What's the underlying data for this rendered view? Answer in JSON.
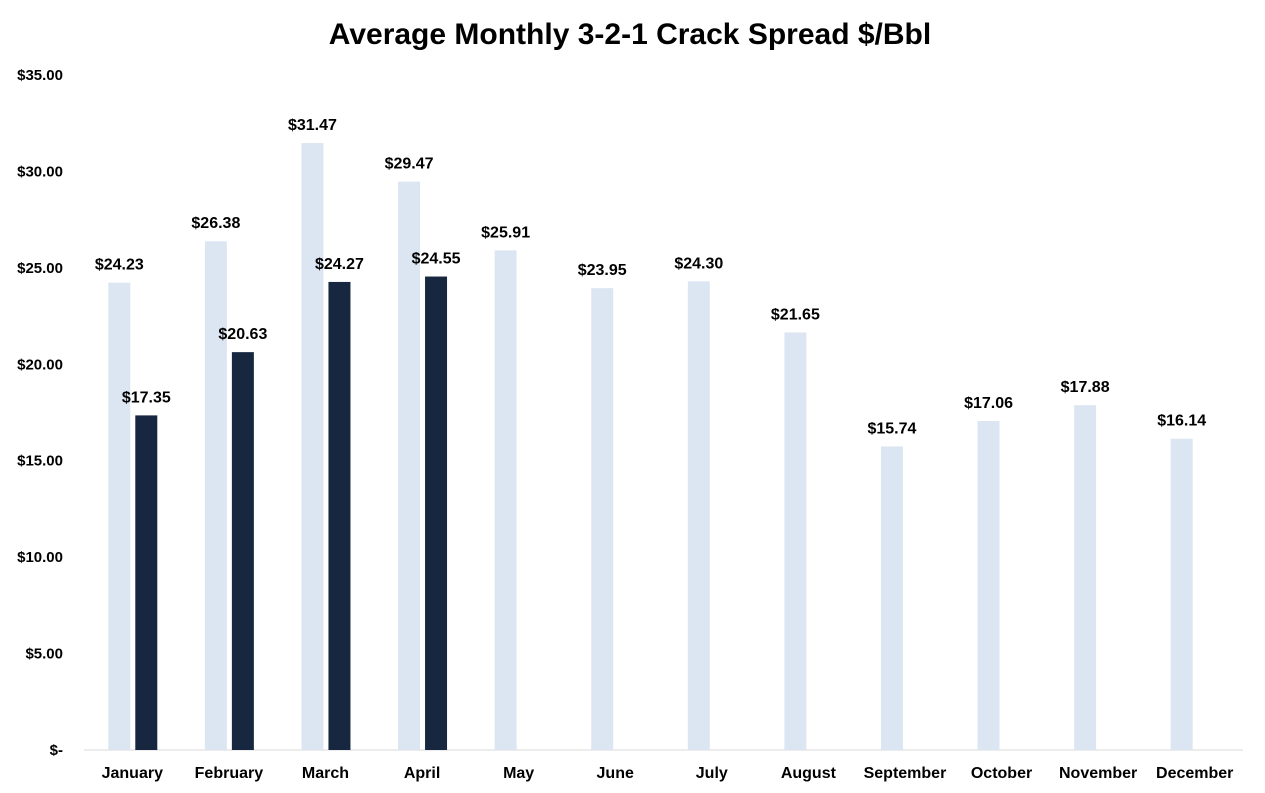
{
  "chart_data": {
    "type": "bar",
    "title": "Average Monthly 3-2-1 Crack Spread $/Bbl",
    "xlabel": "",
    "ylabel": "",
    "ylim": [
      0,
      35
    ],
    "y_ticks": [
      {
        "value": 35,
        "label": "$35.00"
      },
      {
        "value": 30,
        "label": "$30.00"
      },
      {
        "value": 25,
        "label": "$25.00"
      },
      {
        "value": 20,
        "label": "$20.00"
      },
      {
        "value": 15,
        "label": "$15.00"
      },
      {
        "value": 10,
        "label": "$10.00"
      },
      {
        "value": 5,
        "label": "$5.00"
      },
      {
        "value": 0,
        "label": "$-"
      }
    ],
    "grid": false,
    "legend": "none",
    "categories": [
      "January",
      "February",
      "March",
      "April",
      "May",
      "June",
      "July",
      "August",
      "September",
      "October",
      "November",
      "December"
    ],
    "series": [
      {
        "color": "#dce6f2",
        "values": [
          24.23,
          26.38,
          31.47,
          29.47,
          25.91,
          23.95,
          24.3,
          21.65,
          15.74,
          17.06,
          17.88,
          16.14
        ],
        "labels": [
          "$24.23",
          "$26.38",
          "$31.47",
          "$29.47",
          "$25.91",
          "$23.95",
          "$24.30",
          "$21.65",
          "$15.74",
          "$17.06",
          "$17.88",
          "$16.14"
        ]
      },
      {
        "color": "#172740",
        "values": [
          17.35,
          20.63,
          24.27,
          24.55,
          null,
          null,
          null,
          null,
          null,
          null,
          null,
          null
        ],
        "labels": [
          "$17.35",
          "$20.63",
          "$24.27",
          "$24.55",
          "",
          "",
          "",
          "",
          "",
          "",
          "",
          ""
        ]
      }
    ]
  }
}
